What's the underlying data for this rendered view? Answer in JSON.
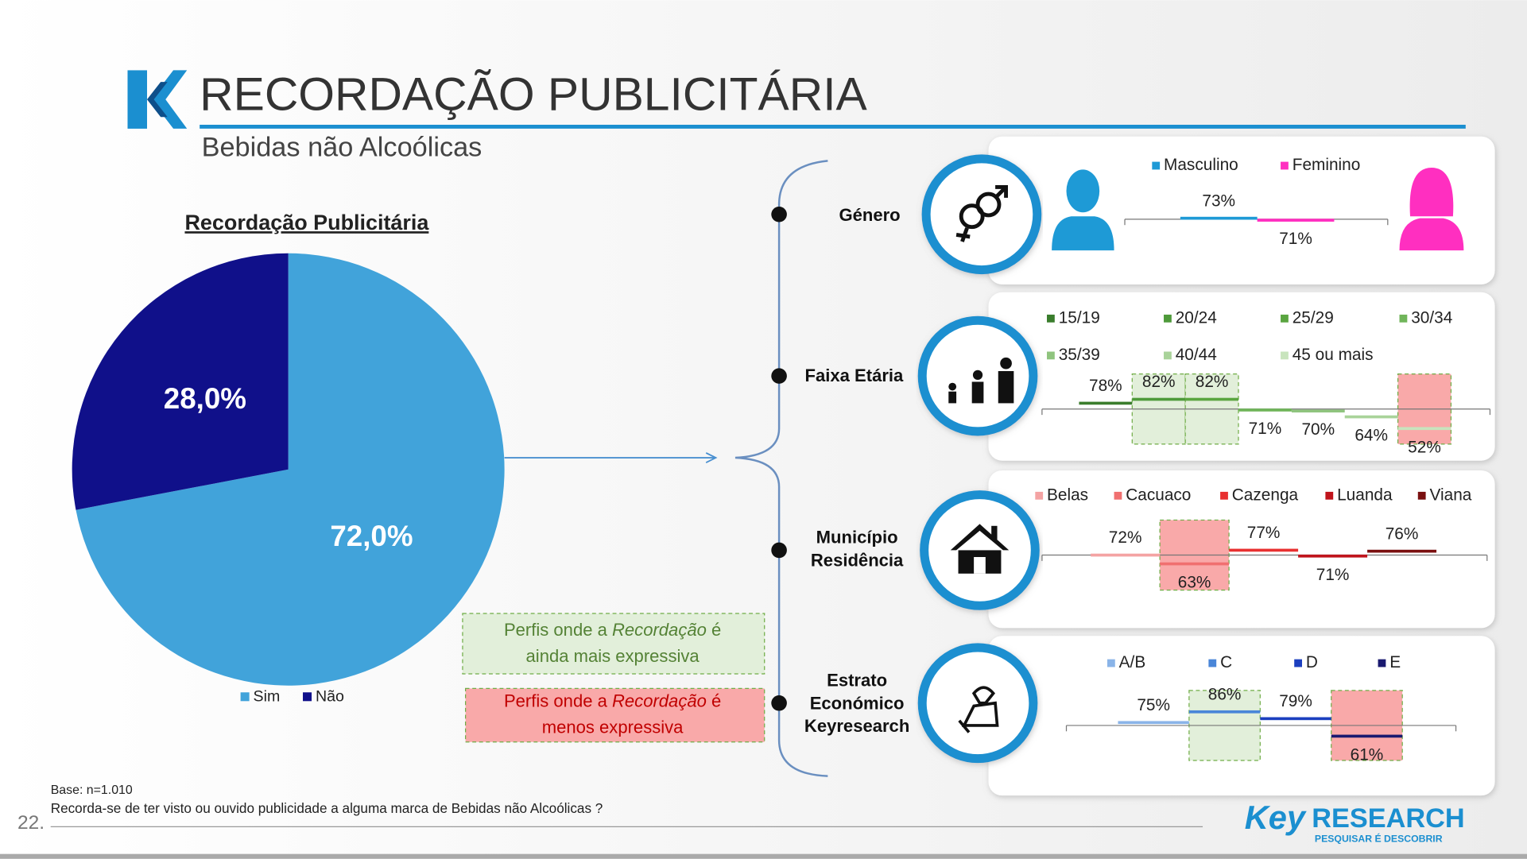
{
  "header": {
    "title": "RECORDAÇÃO PUBLICITÁRIA",
    "subtitle": "Bebidas não Alcoólicas"
  },
  "chart_data": [
    {
      "type": "pie",
      "title": "Recordação Publicitária",
      "categories": [
        "Sim",
        "Não"
      ],
      "values": [
        72,
        28
      ],
      "value_labels": [
        "72,0%",
        "28,0%"
      ],
      "colors": [
        "#41a3da",
        "#10108a"
      ]
    },
    {
      "type": "bar",
      "title": "Género",
      "series": [
        {
          "name": "Masculino",
          "color": "#1e9ad6",
          "values": [
            73
          ],
          "value_labels": [
            "73%"
          ]
        },
        {
          "name": "Feminino",
          "color": "#ff2fc0",
          "values": [
            71
          ],
          "value_labels": [
            "71%"
          ]
        }
      ]
    },
    {
      "type": "bar",
      "title": "Faixa Etária",
      "series": [
        {
          "name": "15/19",
          "color": "#3a7d2c",
          "values": [
            78
          ],
          "value_labels": [
            "78%"
          ]
        },
        {
          "name": "20/24",
          "color": "#4e9a3a",
          "values": [
            82
          ],
          "value_labels": [
            "82%"
          ],
          "highlight": "green"
        },
        {
          "name": "25/29",
          "color": "#5aa540",
          "values": [
            82
          ],
          "value_labels": [
            "82%"
          ],
          "highlight": "green"
        },
        {
          "name": "30/34",
          "color": "#70b55a",
          "values": [
            71
          ],
          "value_labels": [
            "71%"
          ]
        },
        {
          "name": "35/39",
          "color": "#8fc47e",
          "values": [
            70
          ],
          "value_labels": [
            "70%"
          ]
        },
        {
          "name": "40/44",
          "color": "#a9d39a",
          "values": [
            64
          ],
          "value_labels": [
            "64%"
          ]
        },
        {
          "name": "45 ou mais",
          "color": "#c8e4bd",
          "values": [
            52
          ],
          "value_labels": [
            "52%"
          ],
          "highlight": "red"
        }
      ]
    },
    {
      "type": "bar",
      "title": [
        "Município",
        "Residência"
      ],
      "series": [
        {
          "name": "Belas",
          "color": "#f4a3a3",
          "values": [
            72
          ],
          "value_labels": [
            "72%"
          ]
        },
        {
          "name": "Cacuaco",
          "color": "#f07070",
          "values": [
            63
          ],
          "value_labels": [
            "63%"
          ],
          "highlight": "red"
        },
        {
          "name": "Cazenga",
          "color": "#e83030",
          "values": [
            77
          ],
          "value_labels": [
            "77%"
          ]
        },
        {
          "name": "Luanda",
          "color": "#c0141c",
          "values": [
            71
          ],
          "value_labels": [
            "71%"
          ]
        },
        {
          "name": "Viana",
          "color": "#7a1010",
          "values": [
            76
          ],
          "value_labels": [
            "76%"
          ]
        }
      ]
    },
    {
      "type": "bar",
      "title": [
        "Estrato",
        "Económico",
        "Keyresearch"
      ],
      "series": [
        {
          "name": "A/B",
          "color": "#8ab4e8",
          "values": [
            75
          ],
          "value_labels": [
            "75%"
          ]
        },
        {
          "name": "C",
          "color": "#4a86d8",
          "values": [
            86
          ],
          "value_labels": [
            "86%"
          ],
          "highlight": "green"
        },
        {
          "name": "D",
          "color": "#1c3fbf",
          "values": [
            79
          ],
          "value_labels": [
            "79%"
          ]
        },
        {
          "name": "E",
          "color": "#1a1a70",
          "values": [
            61
          ],
          "value_labels": [
            "61%"
          ],
          "highlight": "red"
        }
      ]
    }
  ],
  "notes": [
    {
      "lines": [
        [
          "Perfis onde a ",
          "Recordação",
          " é"
        ],
        [
          "ainda mais expressiva"
        ]
      ]
    },
    {
      "lines": [
        [
          "Perfis onde a ",
          "Recordação",
          " é"
        ],
        [
          "menos expressiva"
        ]
      ]
    }
  ],
  "footer": {
    "base": "Base: n=1.010",
    "question": "Recorda-se de ter visto ou ouvido publicidade a alguma marca de Bebidas não Alcoólicas ?",
    "page": "22.",
    "logo": [
      "Key",
      "RESEARCH",
      "PESQUISAR É DESCOBRIR"
    ]
  }
}
